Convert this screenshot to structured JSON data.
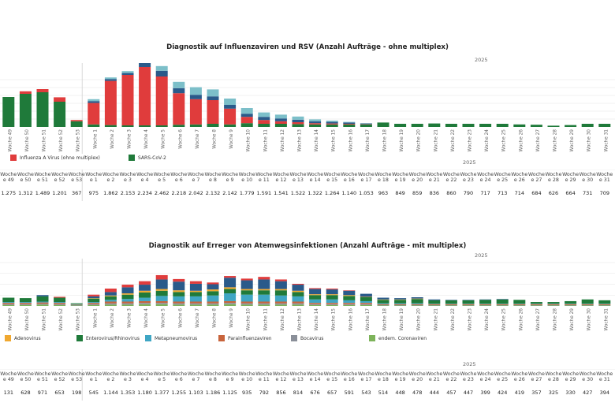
{
  "chart_data": [
    {
      "type": "bar",
      "title": "Diagnostik auf Influenzaviren und RSV (Anzahl Aufträge - ohne multiplex)",
      "year_label": "2025",
      "categories": [
        "Woche 49",
        "Woche 50",
        "Woche 51",
        "Woche 52",
        "Woche 53",
        "Woche 1",
        "Woche 2",
        "Woche 3",
        "Woche 4",
        "Woche 5",
        "Woche 6",
        "Woche 7",
        "Woche 8",
        "Woche 9",
        "Woche 10",
        "Woche 11",
        "Woche 12",
        "Woche 13",
        "Woche 14",
        "Woche 15",
        "Woche 16",
        "Woche 17",
        "Woche 18",
        "Woche 19",
        "Woche 20",
        "Woche 21",
        "Woche 22",
        "Woche 23",
        "Woche 24",
        "Woche 25",
        "Woche 26",
        "Woche 27",
        "Woche 28",
        "Woche 29",
        "Woche 30",
        "Woche 31"
      ],
      "stack_colors": [
        "#1f7a3a",
        "#e03c3c",
        "#2a5a8a",
        "#7cbfc9"
      ],
      "series": [
        {
          "name": "SARS-CoV-2",
          "color": "#1f7a3a",
          "values": [
            95,
            105,
            110,
            80,
            18,
            8,
            6,
            5,
            5,
            5,
            7,
            8,
            10,
            8,
            12,
            10,
            10,
            9,
            8,
            8,
            8,
            8,
            14,
            10,
            10,
            11,
            10,
            10,
            10,
            10,
            8,
            7,
            4,
            6,
            10,
            10
          ]
        },
        {
          "name": "Influenza A Virus (ohne multiplex)",
          "color": "#e03c3c",
          "values": [
            0,
            8,
            10,
            14,
            4,
            68,
            140,
            160,
            185,
            155,
            100,
            80,
            75,
            50,
            20,
            12,
            8,
            6,
            4,
            3,
            2,
            1,
            0,
            0,
            0,
            0,
            0,
            0,
            0,
            0,
            0,
            0,
            0,
            0,
            0,
            0
          ]
        },
        {
          "values": [
            0,
            0,
            0,
            0,
            0,
            6,
            6,
            6,
            18,
            18,
            16,
            14,
            12,
            12,
            10,
            10,
            9,
            8,
            6,
            5,
            4,
            2,
            0,
            0,
            0,
            0,
            0,
            0,
            0,
            0,
            0,
            0,
            0,
            0,
            0,
            0
          ]
        },
        {
          "values": [
            0,
            0,
            0,
            0,
            0,
            6,
            5,
            6,
            15,
            15,
            20,
            24,
            22,
            20,
            18,
            14,
            12,
            10,
            6,
            4,
            2,
            1,
            0,
            0,
            0,
            0,
            0,
            0,
            0,
            0,
            0,
            0,
            0,
            0,
            0,
            0
          ]
        }
      ],
      "legend": [
        {
          "label": "Influenza A Virus (ohne multiplex)",
          "color": "#e03c3c"
        },
        {
          "label": "SARS-CoV-2",
          "color": "#1f7a3a"
        }
      ],
      "table": {
        "year_label": "2025",
        "headers": [
          "Woche e 49",
          "Woche e 50",
          "Woche e 51",
          "Woche e 52",
          "Woche e 53",
          "Woche e 1",
          "Woche e 2",
          "Woche e 3",
          "Woche e 4",
          "Woche e 5",
          "Woche e 6",
          "Woche e 7",
          "Woche e 8",
          "Woche e 9",
          "Woche e 10",
          "Woche e 11",
          "Woche e 12",
          "Woche e 13",
          "Woche e 14",
          "Woche e 15",
          "Woche e 16",
          "Woche e 17",
          "Woche e 18",
          "Woche e 19",
          "Woche e 20",
          "Woche e 21",
          "Woche e 22",
          "Woche e 23",
          "Woche e 24",
          "Woche e 25",
          "Woche e 26",
          "Woche e 27",
          "Woche e 28",
          "Woche e 29",
          "Woche e 30",
          "Woche e 31"
        ],
        "values": [
          "1.275",
          "1.312",
          "1.489",
          "1.201",
          "367",
          "975",
          "1.862",
          "2.153",
          "2.234",
          "2.462",
          "2.218",
          "2.042",
          "2.132",
          "2.142",
          "1.779",
          "1.591",
          "1.541",
          "1.522",
          "1.322",
          "1.264",
          "1.140",
          "1.053",
          "963",
          "849",
          "859",
          "836",
          "860",
          "790",
          "717",
          "713",
          "714",
          "684",
          "626",
          "664",
          "731",
          "709"
        ]
      }
    },
    {
      "type": "bar",
      "title": "Diagnostik auf Erreger von Atemwegsinfektionen (Anzahl Aufträge - mit multiplex)",
      "year_label": "2025",
      "categories": [
        "Woche 49",
        "Woche 50",
        "Woche 51",
        "Woche 52",
        "Woche 53",
        "Woche 1",
        "Woche 2",
        "Woche 3",
        "Woche 4",
        "Woche 5",
        "Woche 6",
        "Woche 7",
        "Woche 8",
        "Woche 9",
        "Woche 10",
        "Woche 11",
        "Woche 12",
        "Woche 13",
        "Woche 14",
        "Woche 15",
        "Woche 16",
        "Woche 17",
        "Woche 18",
        "Woche 19",
        "Woche 20",
        "Woche 21",
        "Woche 22",
        "Woche 23",
        "Woche 24",
        "Woche 25",
        "Woche 26",
        "Woche 27",
        "Woche 28",
        "Woche 29",
        "Woche 30",
        "Woche 31"
      ],
      "series": [
        {
          "name": "endem. Coronaviren",
          "color": "#7db35a",
          "values": [
            2,
            2,
            3,
            2,
            1,
            2,
            3,
            3,
            4,
            4,
            3,
            3,
            3,
            4,
            3,
            3,
            3,
            3,
            2,
            2,
            2,
            2,
            1,
            1,
            1,
            1,
            1,
            1,
            1,
            1,
            1,
            1,
            1,
            1,
            1,
            1
          ]
        },
        {
          "name": "Bocavirus",
          "color": "#8a8f99",
          "values": [
            2,
            2,
            2,
            2,
            1,
            2,
            3,
            3,
            3,
            3,
            3,
            3,
            3,
            3,
            3,
            3,
            3,
            3,
            2,
            2,
            2,
            2,
            1,
            1,
            1,
            1,
            1,
            1,
            1,
            1,
            1,
            1,
            1,
            1,
            1,
            1
          ]
        },
        {
          "name": "Parainfluenzaviren",
          "color": "#c8643c",
          "values": [
            3,
            3,
            3,
            3,
            1,
            3,
            4,
            4,
            4,
            4,
            4,
            4,
            4,
            4,
            4,
            4,
            4,
            4,
            3,
            3,
            3,
            3,
            2,
            2,
            2,
            2,
            2,
            2,
            2,
            2,
            2,
            2,
            2,
            2,
            2,
            2
          ]
        },
        {
          "name": "Metapneumovirus",
          "color": "#3fa6c4",
          "values": [
            2,
            2,
            2,
            2,
            1,
            2,
            4,
            6,
            8,
            12,
            12,
            12,
            14,
            18,
            16,
            16,
            14,
            12,
            8,
            8,
            6,
            4,
            2,
            2,
            2,
            1,
            1,
            1,
            1,
            1,
            1,
            1,
            1,
            1,
            1,
            1
          ]
        },
        {
          "name": "Enterovirus/Rhinovirus",
          "color": "#1f7a3a",
          "values": [
            10,
            9,
            12,
            10,
            2,
            8,
            8,
            10,
            12,
            12,
            10,
            10,
            10,
            10,
            10,
            10,
            12,
            10,
            10,
            10,
            10,
            9,
            8,
            8,
            10,
            8,
            8,
            8,
            9,
            10,
            9,
            4,
            4,
            6,
            10,
            8
          ]
        },
        {
          "values": [
            0,
            0,
            0,
            0,
            0,
            1,
            2,
            3,
            4,
            4,
            4,
            3,
            4,
            4,
            3,
            3,
            3,
            3,
            2,
            2,
            2,
            1,
            1,
            1,
            1,
            0,
            0,
            0,
            0,
            0,
            0,
            0,
            0,
            0,
            0,
            0
          ]
        },
        {
          "values": [
            0,
            0,
            3,
            0,
            0,
            4,
            8,
            14,
            14,
            22,
            20,
            16,
            12,
            22,
            20,
            22,
            18,
            14,
            12,
            11,
            10,
            7,
            4,
            3,
            3,
            2,
            1,
            1,
            1,
            1,
            0,
            0,
            0,
            0,
            0,
            0
          ]
        },
        {
          "values": [
            0,
            0,
            0,
            2,
            0,
            4,
            8,
            6,
            8,
            10,
            6,
            6,
            4,
            4,
            4,
            6,
            4,
            2,
            2,
            2,
            1,
            0,
            0,
            0,
            0,
            0,
            0,
            0,
            0,
            0,
            0,
            0,
            0,
            0,
            0,
            0
          ]
        }
      ],
      "legend": [
        {
          "label": "Adenovirus",
          "color": "#f0a830"
        },
        {
          "label": "Enterovirus/Rhinovirus",
          "color": "#1f7a3a"
        },
        {
          "label": "Metapneumovirus",
          "color": "#3fa6c4"
        },
        {
          "label": "Parainfluenzaviren",
          "color": "#c8643c"
        },
        {
          "label": "Bocavirus",
          "color": "#8a8f99"
        },
        {
          "label": "endem. Coronaviren",
          "color": "#7db35a"
        }
      ],
      "table": {
        "year_label": "2025",
        "headers": [
          "Woche e 49",
          "Woche e 50",
          "Woche e 51",
          "Woche e 52",
          "Woche e 53",
          "Woche e 1",
          "Woche e 2",
          "Woche e 3",
          "Woche e 4",
          "Woche e 5",
          "Woche e 6",
          "Woche e 7",
          "Woche e 8",
          "Woche e 9",
          "Woche e 10",
          "Woche e 11",
          "Woche e 12",
          "Woche e 13",
          "Woche e 14",
          "Woche e 15",
          "Woche e 16",
          "Woche e 17",
          "Woche e 18",
          "Woche e 19",
          "Woche e 20",
          "Woche e 21",
          "Woche e 22",
          "Woche e 23",
          "Woche e 24",
          "Woche e 25",
          "Woche e 26",
          "Woche e 27",
          "Woche e 28",
          "Woche e 29",
          "Woche e 30",
          "Woche e 31"
        ],
        "values": [
          "131",
          "628",
          "971",
          "653",
          "198",
          "545",
          "1.144",
          "1.353",
          "1.180",
          "1.377",
          "1.255",
          "1.103",
          "1.186",
          "1.125",
          "935",
          "792",
          "856",
          "814",
          "676",
          "657",
          "591",
          "543",
          "514",
          "448",
          "478",
          "444",
          "457",
          "447",
          "399",
          "424",
          "419",
          "357",
          "325",
          "330",
          "427",
          "394"
        ]
      }
    }
  ]
}
